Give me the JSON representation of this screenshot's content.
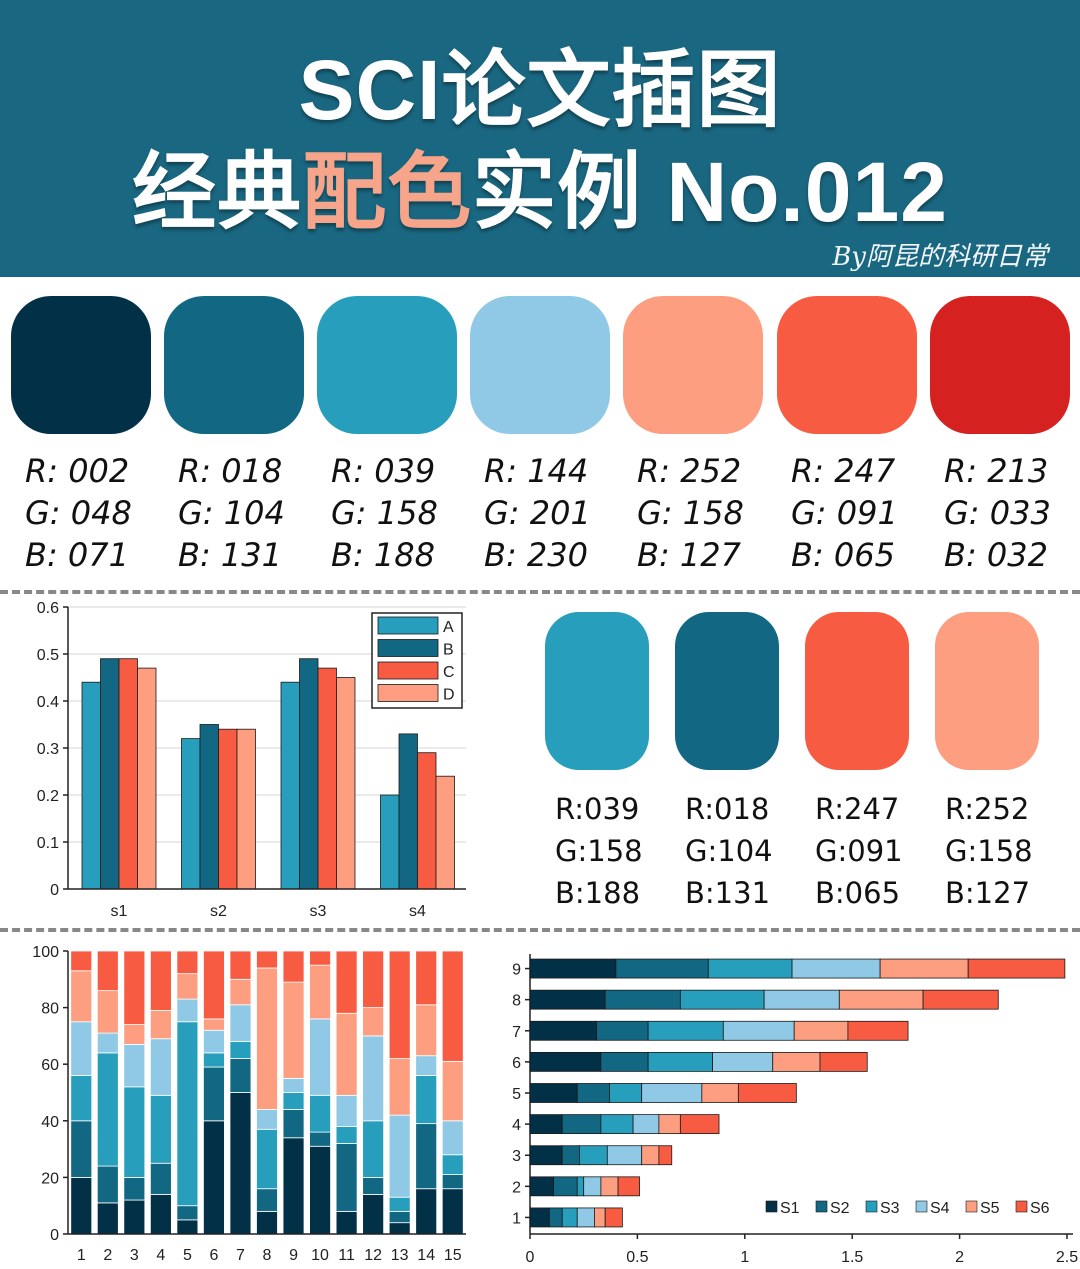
{
  "header": {
    "title_line1": "SCI论文插图",
    "title_line2_a": "经典",
    "title_line2_accent": "配色",
    "title_line2_b": "实例 No.012",
    "byline": "By阿昆的科研日常",
    "bg_color": "#1a6781",
    "accent_color": "#f7a58a"
  },
  "palette": [
    {
      "hex": "#023047",
      "r": "R: 002",
      "g": "G: 048",
      "b": "B: 071"
    },
    {
      "hex": "#126883",
      "r": "R: 018",
      "g": "G: 104",
      "b": "B: 131"
    },
    {
      "hex": "#279ebc",
      "r": "R: 039",
      "g": "G: 158",
      "b": "B: 188"
    },
    {
      "hex": "#90c9e6",
      "r": "R: 144",
      "g": "G: 201",
      "b": "B: 230"
    },
    {
      "hex": "#fc9e7f",
      "r": "R: 252",
      "g": "G: 158",
      "b": "B: 127"
    },
    {
      "hex": "#f75b41",
      "r": "R: 247",
      "g": "G: 091",
      "b": "B: 065"
    },
    {
      "hex": "#d52120",
      "r": "R: 213",
      "g": "G: 033",
      "b": "B: 032"
    }
  ],
  "palette2": [
    {
      "hex": "#279ebc",
      "r": "R:039",
      "g": "G:158",
      "b": "B:188"
    },
    {
      "hex": "#126883",
      "r": "R:018",
      "g": "G:104",
      "b": "B:131"
    },
    {
      "hex": "#f75b41",
      "r": "R:247",
      "g": "G:091",
      "b": "B:065"
    },
    {
      "hex": "#fc9e7f",
      "r": "R:252",
      "g": "G:158",
      "b": "B:127"
    }
  ],
  "chart_data": [
    {
      "type": "bar",
      "categories": [
        "s1",
        "s2",
        "s3",
        "s4"
      ],
      "series": [
        {
          "name": "A",
          "color": "#279ebc",
          "values": [
            0.44,
            0.32,
            0.44,
            0.2
          ]
        },
        {
          "name": "B",
          "color": "#126883",
          "values": [
            0.49,
            0.35,
            0.49,
            0.33
          ]
        },
        {
          "name": "C",
          "color": "#f75b41",
          "values": [
            0.49,
            0.34,
            0.47,
            0.29
          ]
        },
        {
          "name": "D",
          "color": "#fc9e7f",
          "values": [
            0.47,
            0.34,
            0.45,
            0.24
          ]
        }
      ],
      "ylim": [
        0,
        0.6
      ],
      "yticks": [
        "0",
        "0.1",
        "0.2",
        "0.3",
        "0.4",
        "0.5",
        "0.6"
      ],
      "grid": true,
      "legend": "top-right"
    },
    {
      "type": "bar",
      "stacked": true,
      "categories": [
        "1",
        "2",
        "3",
        "4",
        "5",
        "6",
        "7",
        "8",
        "9",
        "10",
        "11",
        "12",
        "13",
        "14",
        "15"
      ],
      "series": [
        {
          "color": "#023047",
          "values": [
            20,
            11,
            12,
            14,
            5,
            40,
            50,
            8,
            34,
            31,
            8,
            14,
            4,
            16,
            16
          ]
        },
        {
          "color": "#126883",
          "values": [
            20,
            13,
            8,
            11,
            5,
            19,
            12,
            8,
            10,
            5,
            24,
            6,
            4,
            23,
            5
          ]
        },
        {
          "color": "#279ebc",
          "values": [
            16,
            40,
            32,
            24,
            65,
            5,
            6,
            21,
            6,
            13,
            6,
            20,
            5,
            17,
            7
          ]
        },
        {
          "color": "#90c9e6",
          "values": [
            19,
            7,
            15,
            20,
            8,
            8,
            13,
            7,
            5,
            27,
            11,
            30,
            29,
            7,
            12
          ]
        },
        {
          "color": "#fc9e7f",
          "values": [
            18,
            15,
            7,
            10,
            9,
            4,
            9,
            50,
            34,
            19,
            29,
            10,
            20,
            18,
            21
          ]
        },
        {
          "color": "#f75b41",
          "values": [
            7,
            14,
            26,
            21,
            8,
            24,
            10,
            6,
            11,
            5,
            22,
            20,
            38,
            19,
            39
          ]
        }
      ],
      "ylim": [
        0,
        100
      ],
      "yticks": [
        "0",
        "20",
        "40",
        "60",
        "80",
        "100"
      ]
    },
    {
      "type": "bar",
      "orientation": "horizontal",
      "stacked": true,
      "categories": [
        "1",
        "2",
        "3",
        "4",
        "5",
        "6",
        "7",
        "8",
        "9"
      ],
      "series": [
        {
          "name": "S1",
          "color": "#023047",
          "values": [
            0.09,
            0.11,
            0.15,
            0.15,
            0.22,
            0.33,
            0.31,
            0.35,
            0.4
          ]
        },
        {
          "name": "S2",
          "color": "#126883",
          "values": [
            0.06,
            0.11,
            0.08,
            0.18,
            0.15,
            0.22,
            0.24,
            0.35,
            0.43
          ]
        },
        {
          "name": "S3",
          "color": "#279ebc",
          "values": [
            0.07,
            0.03,
            0.13,
            0.15,
            0.15,
            0.3,
            0.35,
            0.39,
            0.39
          ]
        },
        {
          "name": "S4",
          "color": "#90c9e6",
          "values": [
            0.08,
            0.08,
            0.16,
            0.12,
            0.28,
            0.28,
            0.33,
            0.35,
            0.41
          ]
        },
        {
          "name": "S5",
          "color": "#fc9e7f",
          "values": [
            0.05,
            0.08,
            0.08,
            0.1,
            0.17,
            0.22,
            0.25,
            0.39,
            0.41
          ]
        },
        {
          "name": "S6",
          "color": "#f75b41",
          "values": [
            0.08,
            0.1,
            0.06,
            0.18,
            0.27,
            0.22,
            0.28,
            0.35,
            0.45
          ]
        }
      ],
      "xlim": [
        0,
        2.5
      ],
      "xticks": [
        "0",
        "0.5",
        "1",
        "1.5",
        "2",
        "2.5"
      ],
      "legend": "bottom-right"
    }
  ]
}
